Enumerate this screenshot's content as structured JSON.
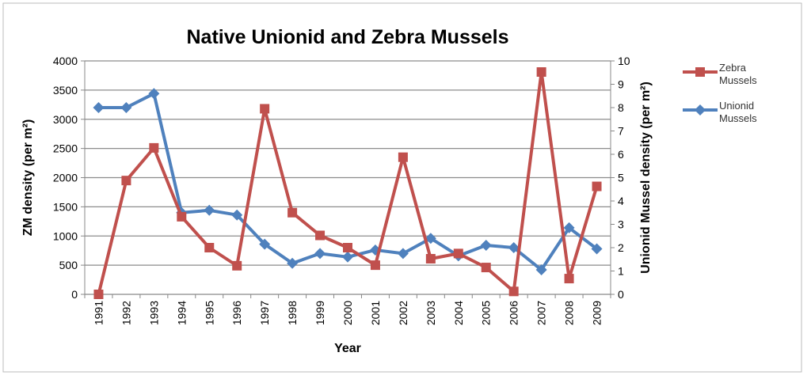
{
  "chart_data": {
    "type": "line",
    "title": "Native Unionid and Zebra Mussels",
    "xlabel": "Year",
    "ylabel": "ZM density (per m²)",
    "y2label": "Unionid Mussel  density (per m²)",
    "ylim": [
      0,
      4000
    ],
    "y2lim": [
      0,
      10
    ],
    "yticks": [
      0,
      500,
      1000,
      1500,
      2000,
      2500,
      3000,
      3500,
      4000
    ],
    "y2ticks": [
      0,
      1,
      2,
      3,
      4,
      5,
      6,
      7,
      8,
      9,
      10
    ],
    "grid": true,
    "legend_position": "right",
    "categories": [
      "1991",
      "1992",
      "1993",
      "1994",
      "1995",
      "1996",
      "1997",
      "1998",
      "1999",
      "2000",
      "2001",
      "2002",
      "2003",
      "2004",
      "2005",
      "2006",
      "2007",
      "2008",
      "2009"
    ],
    "series": [
      {
        "name": "Zebra Mussels",
        "legend_lines": [
          "Zebra",
          "Mussels"
        ],
        "axis": "left",
        "color": "#C0504D",
        "marker": "square",
        "values": [
          0,
          1950,
          2510,
          1330,
          800,
          490,
          3180,
          1400,
          1010,
          800,
          500,
          2350,
          610,
          700,
          460,
          50,
          3810,
          270,
          1850
        ]
      },
      {
        "name": "Unionid Mussels",
        "legend_lines": [
          "Unionid",
          "Mussels"
        ],
        "axis": "right",
        "color": "#4F81BD",
        "marker": "diamond",
        "values": [
          8.0,
          8.0,
          8.6,
          3.5,
          3.6,
          3.4,
          2.15,
          1.33,
          1.75,
          1.6,
          1.9,
          1.75,
          2.4,
          1.65,
          2.1,
          2.0,
          1.05,
          2.85,
          1.95
        ]
      }
    ]
  }
}
